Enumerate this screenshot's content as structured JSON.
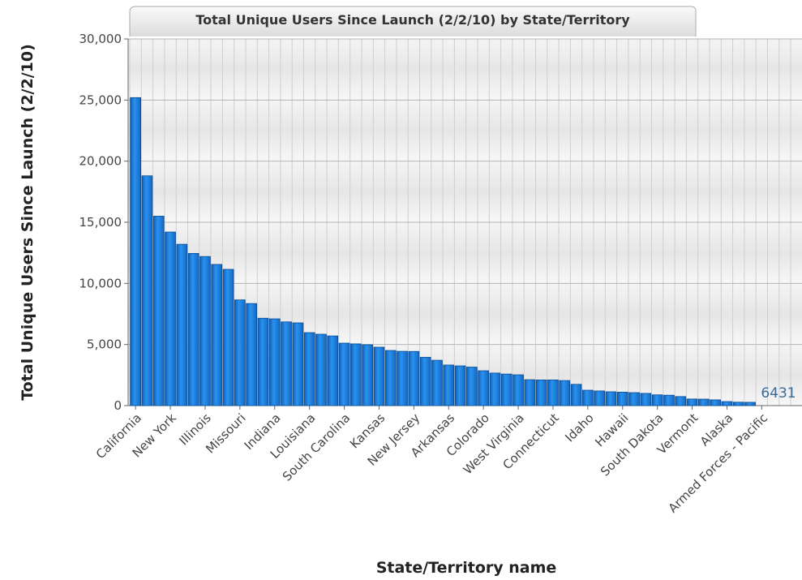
{
  "chart_data": {
    "type": "bar",
    "title": "Total Unique Users Since Launch (2/2/10) by State/Territory",
    "ylabel": "Total Unique Users Since Launch (2/2/10)",
    "xlabel": "State/Territory name",
    "annotation": "6431",
    "color": "#1a80de",
    "grid": true,
    "categories": [
      "California",
      null,
      null,
      "New York",
      null,
      null,
      "Illinois",
      null,
      null,
      "Missouri",
      null,
      null,
      "Indiana",
      null,
      null,
      "Louisiana",
      null,
      null,
      "South Carolina",
      null,
      null,
      "Kansas",
      null,
      null,
      "New Jersey",
      null,
      null,
      "Arkansas",
      null,
      null,
      "Colorado",
      null,
      null,
      "West Virginia",
      null,
      null,
      "Connecticut",
      null,
      null,
      "Idaho",
      null,
      null,
      "Hawaii",
      null,
      null,
      "South Dakota",
      null,
      null,
      "Vermont",
      null,
      null,
      "Alaska",
      null,
      null,
      "Armed Forces - Pacific"
    ],
    "values": [
      25200,
      18800,
      15500,
      14200,
      13200,
      12450,
      12200,
      11550,
      11150,
      8650,
      8350,
      7150,
      7100,
      6850,
      6770,
      5970,
      5840,
      5700,
      5110,
      5050,
      4980,
      4780,
      4510,
      4440,
      4430,
      3950,
      3710,
      3320,
      3250,
      3150,
      2850,
      2660,
      2580,
      2520,
      2120,
      2100,
      2100,
      2050,
      1740,
      1260,
      1200,
      1130,
      1100,
      1060,
      1000,
      880,
      850,
      740,
      540,
      530,
      470,
      330,
      280,
      270,
      0
    ],
    "ylim": [
      0,
      30000
    ],
    "yticks": [
      {
        "value": 0,
        "label": "0"
      },
      {
        "value": 5000,
        "label": "5,000"
      },
      {
        "value": 10000,
        "label": "10,000"
      },
      {
        "value": 15000,
        "label": "15,000"
      },
      {
        "value": 20000,
        "label": "20,000"
      },
      {
        "value": 25000,
        "label": "25,000"
      },
      {
        "value": 30000,
        "label": "30,000"
      }
    ]
  }
}
